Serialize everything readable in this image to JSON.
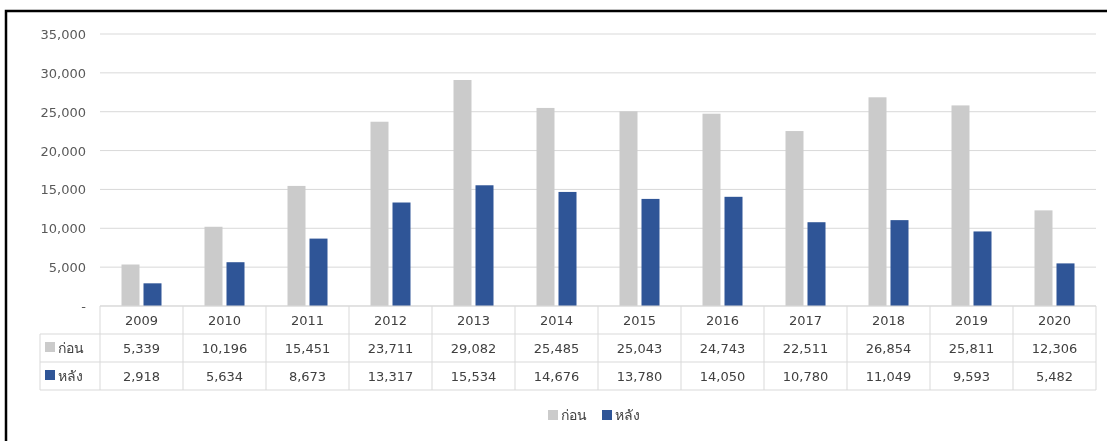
{
  "chart_data": {
    "type": "bar",
    "categories": [
      "2009",
      "2010",
      "2011",
      "2012",
      "2013",
      "2014",
      "2015",
      "2016",
      "2017",
      "2018",
      "2019",
      "2020"
    ],
    "series": [
      {
        "name": "ก่อน",
        "color": "#cbcbcb",
        "values": [
          5339,
          10196,
          15451,
          23711,
          29082,
          25485,
          25043,
          24743,
          22511,
          26854,
          25811,
          12306
        ],
        "value_labels": [
          "5,339",
          "10,196",
          "15,451",
          "23,711",
          "29,082",
          "25,485",
          "25,043",
          "24,743",
          "22,511",
          "26,854",
          "25,811",
          "12,306"
        ]
      },
      {
        "name": "หลัง",
        "color": "#2f5597",
        "values": [
          2918,
          5634,
          8673,
          13317,
          15534,
          14676,
          13780,
          14050,
          10780,
          11049,
          9593,
          5482
        ],
        "value_labels": [
          "2,918",
          "5,634",
          "8,673",
          "13,317",
          "15,534",
          "14,676",
          "13,780",
          "14,050",
          "10,780",
          "11,049",
          "9,593",
          "5,482"
        ]
      }
    ],
    "ylim": [
      0,
      35000
    ],
    "yticks": [
      {
        "value": 0,
        "label": "-"
      },
      {
        "value": 5000,
        "label": "5,000"
      },
      {
        "value": 10000,
        "label": "10,000"
      },
      {
        "value": 15000,
        "label": "15,000"
      },
      {
        "value": 20000,
        "label": "20,000"
      },
      {
        "value": 25000,
        "label": "25,000"
      },
      {
        "value": 30000,
        "label": "30,000"
      },
      {
        "value": 35000,
        "label": "35,000"
      }
    ],
    "grid": "y",
    "legend": "bottom"
  }
}
